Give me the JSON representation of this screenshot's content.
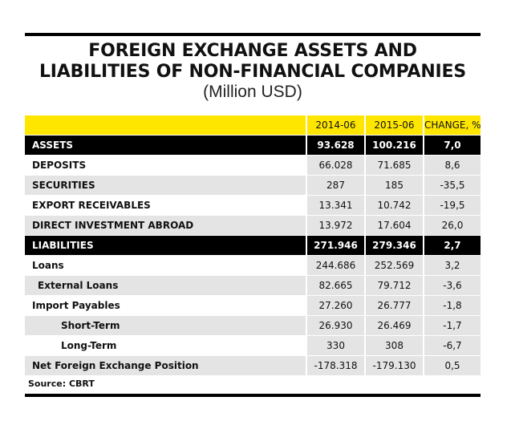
{
  "title_line1": "FOREIGN EXCHANGE ASSETS AND",
  "title_line2": "LIABILITIES OF NON-FINANCIAL COMPANIES",
  "subtitle": "(Million USD)",
  "columns": [
    "",
    "2014-06",
    "2015-06",
    "CHANGE, %"
  ],
  "colors": {
    "header_band": "#ffe600",
    "section_band": "#000000",
    "shaded_cell": "#e4e4e4"
  },
  "rows": [
    {
      "label": "ASSETS",
      "v2014": "93.628",
      "v2015": "100.216",
      "change": "7,0"
    },
    {
      "label": "DEPOSITS",
      "v2014": "66.028",
      "v2015": "71.685",
      "change": "8,6"
    },
    {
      "label": "SECURITIES",
      "v2014": "287",
      "v2015": "185",
      "change": "-35,5"
    },
    {
      "label": "EXPORT RECEIVABLES",
      "v2014": "13.341",
      "v2015": "10.742",
      "change": "-19,5"
    },
    {
      "label": "DIRECT INVESTMENT ABROAD",
      "v2014": "13.972",
      "v2015": "17.604",
      "change": "26,0"
    },
    {
      "label": "LIABILITIES",
      "v2014": "271.946",
      "v2015": "279.346",
      "change": "2,7"
    },
    {
      "label": "Loans",
      "v2014": "244.686",
      "v2015": "252.569",
      "change": "3,2"
    },
    {
      "label": "External Loans",
      "v2014": "82.665",
      "v2015": "79.712",
      "change": "-3,6"
    },
    {
      "label": "Import Payables",
      "v2014": "27.260",
      "v2015": "26.777",
      "change": "-1,8"
    },
    {
      "label": "Short-Term",
      "v2014": "26.930",
      "v2015": "26.469",
      "change": "-1,7"
    },
    {
      "label": "Long-Term",
      "v2014": "330",
      "v2015": "308",
      "change": "-6,7"
    },
    {
      "label": "Net Foreign Exchange Position",
      "v2014": "-178.318",
      "v2015": "-179.130",
      "change": "0,5"
    }
  ],
  "source": "Source: CBRT"
}
